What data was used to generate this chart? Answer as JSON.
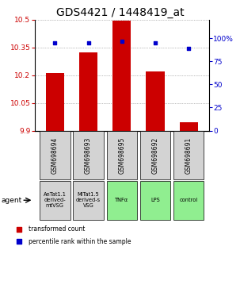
{
  "title": "GDS4421 / 1448419_at",
  "samples": [
    "GSM698694",
    "GSM698693",
    "GSM698695",
    "GSM698692",
    "GSM698691"
  ],
  "agents": [
    "AnTat1.1\nderived-\nmtVSG",
    "MiTat1.5\nderived-s\nVSG",
    "TNFα",
    "LPS",
    "control"
  ],
  "agent_colors": [
    "#d3d3d3",
    "#d3d3d3",
    "#90ee90",
    "#90ee90",
    "#90ee90"
  ],
  "bar_values": [
    10.21,
    10.325,
    10.495,
    10.22,
    9.945
  ],
  "bar_color": "#cc0000",
  "percentile_values": [
    95,
    95,
    97,
    95,
    89
  ],
  "percentile_color": "#0000cc",
  "y_min": 9.9,
  "y_max": 10.5,
  "y_ticks": [
    9.9,
    10.05,
    10.2,
    10.35,
    10.5
  ],
  "y_tick_labels": [
    "9.9",
    "10.05",
    "10.2",
    "10.35",
    "10.5"
  ],
  "y2_ticks": [
    0,
    25,
    50,
    75,
    100
  ],
  "y2_tick_labels": [
    "0",
    "25",
    "50",
    "75",
    "100%"
  ],
  "title_fontsize": 10,
  "tick_fontsize": 6.5,
  "bar_width": 0.55,
  "gsm_fontsize": 5.5,
  "agent_fontsize": 4.8,
  "legend_fontsize": 5.5
}
